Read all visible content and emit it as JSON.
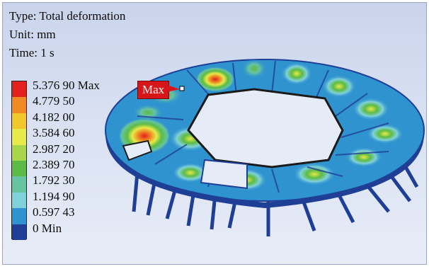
{
  "info": {
    "type": "Type: Total deformation",
    "unit": "Unit: mm",
    "time": "Time: 1 s"
  },
  "legend": {
    "colors": [
      "#e2201c",
      "#ef8a24",
      "#f2c72c",
      "#e6ea4a",
      "#a9d54a",
      "#5dbb45",
      "#66c4a2",
      "#7fd2d9",
      "#2f93cf",
      "#1f3f96"
    ],
    "labels": [
      "5.376 90 Max",
      "4.779 50",
      "4.182 00",
      "3.584 60",
      "2.987 20",
      "2.389 70",
      "1.792 30",
      "1.194 90",
      "0.597 43",
      "0 Min"
    ]
  },
  "probe": {
    "label": "Max"
  }
}
